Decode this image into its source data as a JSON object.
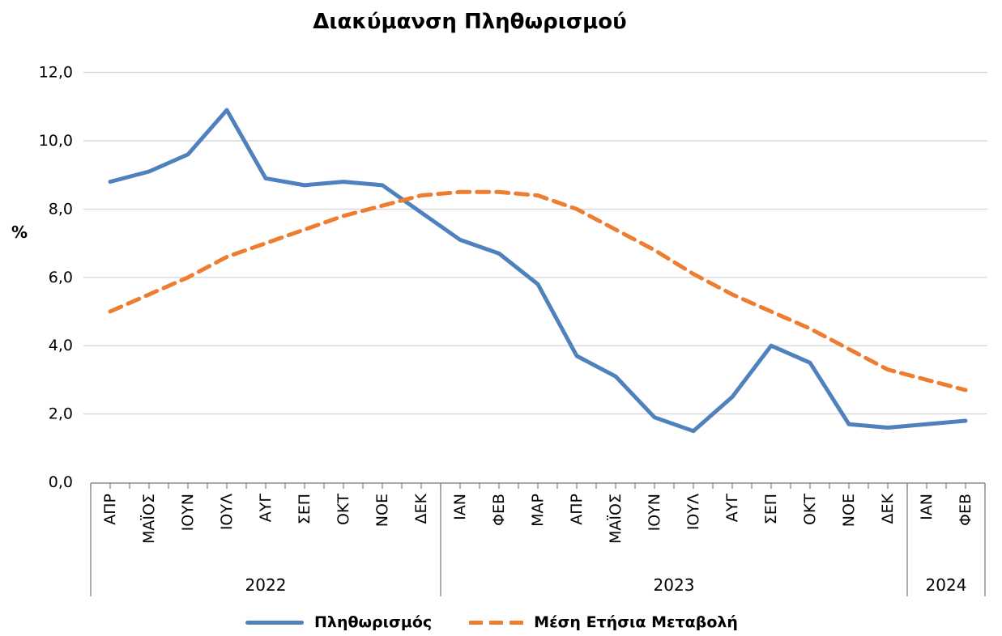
{
  "title": "Διακύμανση Πληθωρισμού",
  "y_axis": {
    "label": "%",
    "tick_labels": [
      "0,0",
      "2,0",
      "4,0",
      "6,0",
      "8,0",
      "10,0",
      "12,0"
    ],
    "min": 0,
    "max": 12,
    "step": 2
  },
  "x_axis": {
    "months": [
      "ΑΠΡ",
      "ΜΑΪΟΣ",
      "ΙΟΥΝ",
      "ΙΟΥΛ",
      "ΑΥΓ",
      "ΣΕΠ",
      "ΟΚΤ",
      "ΝΟΕ",
      "ΔΕΚ",
      "ΙΑΝ",
      "ΦΕΒ",
      "ΜΑΡ",
      "ΑΠΡ",
      "ΜΑΪΟΣ",
      "ΙΟΥΝ",
      "ΙΟΥΛ",
      "ΑΥΓ",
      "ΣΕΠ",
      "ΟΚΤ",
      "ΝΟΕ",
      "ΔΕΚ",
      "ΙΑΝ",
      "ΦΕΒ"
    ],
    "year_groups": [
      {
        "label": "2022",
        "span": 9
      },
      {
        "label": "2023",
        "span": 12
      },
      {
        "label": "2024",
        "span": 2
      }
    ]
  },
  "chart_data": {
    "type": "line",
    "categories": [
      "ΑΠΡ 2022",
      "ΜΑΪΟΣ 2022",
      "ΙΟΥΝ 2022",
      "ΙΟΥΛ 2022",
      "ΑΥΓ 2022",
      "ΣΕΠ 2022",
      "ΟΚΤ 2022",
      "ΝΟΕ 2022",
      "ΔΕΚ 2022",
      "ΙΑΝ 2023",
      "ΦΕΒ 2023",
      "ΜΑΡ 2023",
      "ΑΠΡ 2023",
      "ΜΑΪΟΣ 2023",
      "ΙΟΥΝ 2023",
      "ΙΟΥΛ 2023",
      "ΑΥΓ 2023",
      "ΣΕΠ 2023",
      "ΟΚΤ 2023",
      "ΝΟΕ 2023",
      "ΔΕΚ 2023",
      "ΙΑΝ 2024",
      "ΦΕΒ 2024"
    ],
    "series": [
      {
        "name": "Πληθωρισμός",
        "color": "#4F81BD",
        "style": "solid",
        "values": [
          8.8,
          9.1,
          9.6,
          10.9,
          8.9,
          8.7,
          8.8,
          8.7,
          7.9,
          7.1,
          6.7,
          5.8,
          3.7,
          3.1,
          1.9,
          1.5,
          2.5,
          4.0,
          3.5,
          1.7,
          1.6,
          1.7,
          1.8
        ]
      },
      {
        "name": "Μέση Ετήσια Μεταβολή",
        "color": "#ED7D31",
        "style": "dashed",
        "values": [
          5.0,
          5.5,
          6.0,
          6.6,
          7.0,
          7.4,
          7.8,
          8.1,
          8.4,
          8.5,
          8.5,
          8.4,
          8.0,
          7.4,
          6.8,
          6.1,
          5.5,
          5.0,
          4.5,
          3.9,
          3.3,
          3.0,
          2.7
        ]
      }
    ],
    "title": "Διακύμανση Πληθωρισμού",
    "ylabel": "%",
    "ylim": [
      0,
      12
    ],
    "grid": true,
    "legend_position": "bottom"
  },
  "colors": {
    "gridline": "#D9D9D9",
    "axis": "#8C8C8C",
    "text": "#000000",
    "background": "#FFFFFF"
  }
}
